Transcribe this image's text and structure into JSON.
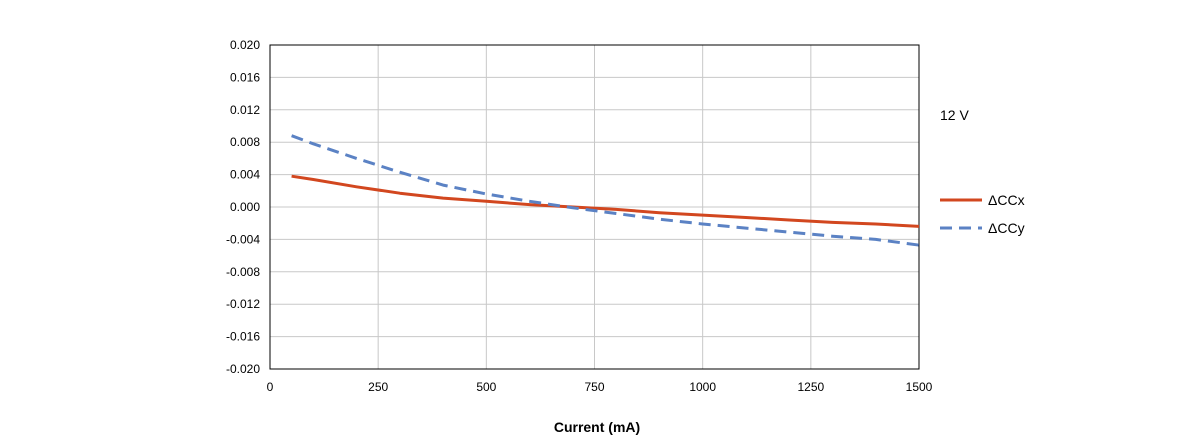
{
  "chart_data": {
    "type": "line",
    "title": "",
    "xlabel": "Current (mA)",
    "ylabel": "",
    "xlim": [
      0,
      1500
    ],
    "ylim": [
      -0.02,
      0.02
    ],
    "x_ticks": [
      "0",
      "250",
      "500",
      "750",
      "1000",
      "1250",
      "1500"
    ],
    "y_ticks": [
      "0.020",
      "0.016",
      "0.012",
      "0.008",
      "0.004",
      "0.000",
      "-0.004",
      "-0.008",
      "-0.012",
      "-0.016",
      "-0.020"
    ],
    "grid": true,
    "annotation": "12 V",
    "legend_position": "right",
    "series": [
      {
        "name": "ΔCCx",
        "color": "#d2471f",
        "dash": "solid",
        "x": [
          50,
          100,
          200,
          300,
          400,
          500,
          600,
          700,
          800,
          900,
          1000,
          1100,
          1200,
          1300,
          1400,
          1500
        ],
        "y": [
          0.0038,
          0.0034,
          0.0025,
          0.0017,
          0.0011,
          0.0007,
          0.0003,
          0.0,
          -0.0003,
          -0.0007,
          -0.001,
          -0.0013,
          -0.0016,
          -0.0019,
          -0.0021,
          -0.0024
        ]
      },
      {
        "name": "ΔCCy",
        "color": "#5b82c4",
        "dash": "dashed",
        "x": [
          50,
          100,
          200,
          300,
          400,
          500,
          600,
          700,
          800,
          900,
          1000,
          1100,
          1200,
          1300,
          1400,
          1500
        ],
        "y": [
          0.0088,
          0.0078,
          0.006,
          0.0043,
          0.0027,
          0.0016,
          0.0007,
          -0.0001,
          -0.0008,
          -0.0015,
          -0.0021,
          -0.0026,
          -0.0031,
          -0.0036,
          -0.004,
          -0.0047
        ]
      }
    ]
  }
}
